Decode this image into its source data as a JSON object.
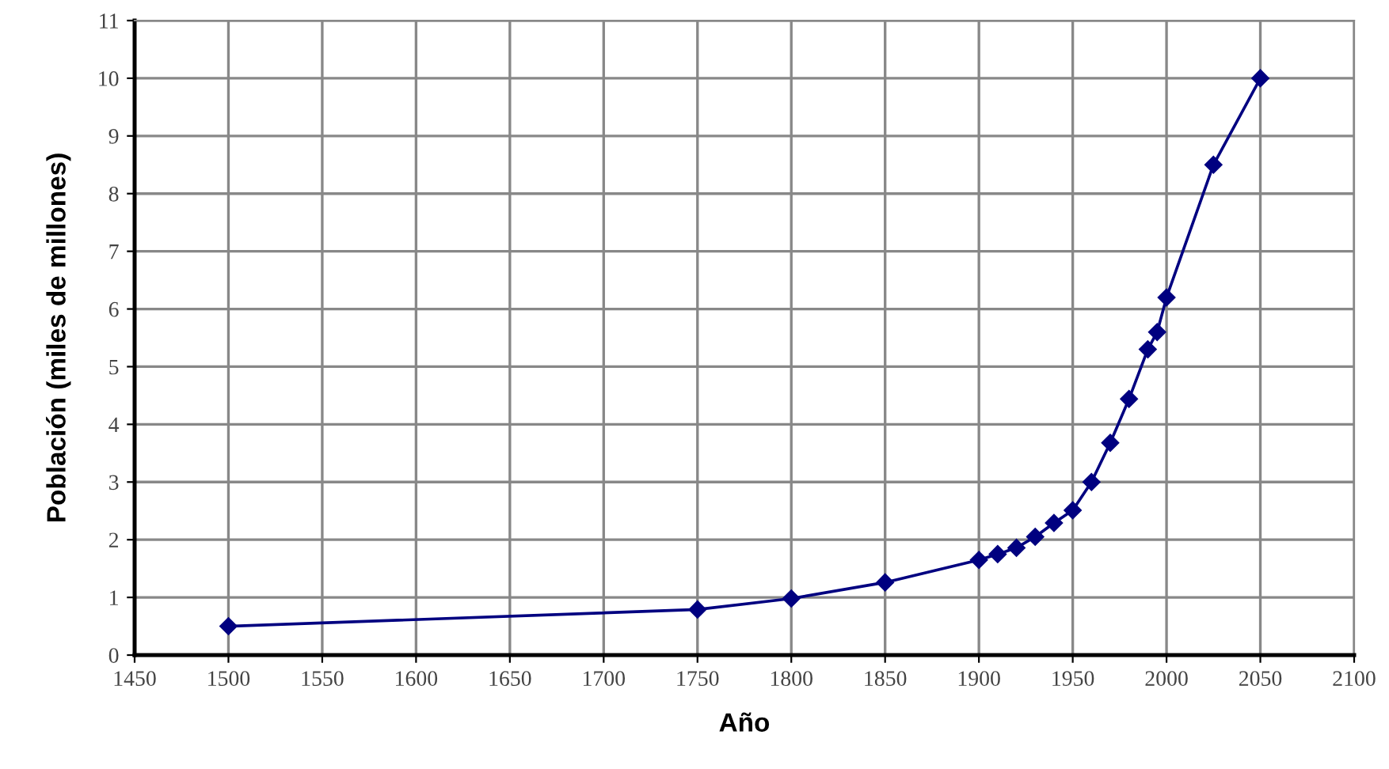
{
  "chart_data": {
    "type": "line",
    "xlabel": "Año",
    "ylabel": "Población (miles de millones)",
    "x": [
      1500,
      1750,
      1800,
      1850,
      1900,
      1910,
      1920,
      1930,
      1940,
      1950,
      1960,
      1970,
      1980,
      1990,
      1995,
      2000,
      2025,
      2050
    ],
    "series": [
      {
        "color": "#000080",
        "values": [
          0.5,
          0.79,
          0.98,
          1.26,
          1.65,
          1.75,
          1.86,
          2.05,
          2.29,
          2.51,
          3.0,
          3.68,
          4.44,
          5.3,
          5.6,
          6.2,
          8.5,
          10.0
        ]
      }
    ],
    "xlim": [
      1450,
      2100
    ],
    "xticks": [
      1450,
      1500,
      1550,
      1600,
      1650,
      1700,
      1750,
      1800,
      1850,
      1900,
      1950,
      2000,
      2050,
      2100
    ],
    "ylim": [
      0,
      11
    ],
    "yticks": [
      0,
      1,
      2,
      3,
      4,
      5,
      6,
      7,
      8,
      9,
      10,
      11
    ],
    "grid": true,
    "marker": "diamond",
    "line_style": "solid"
  }
}
